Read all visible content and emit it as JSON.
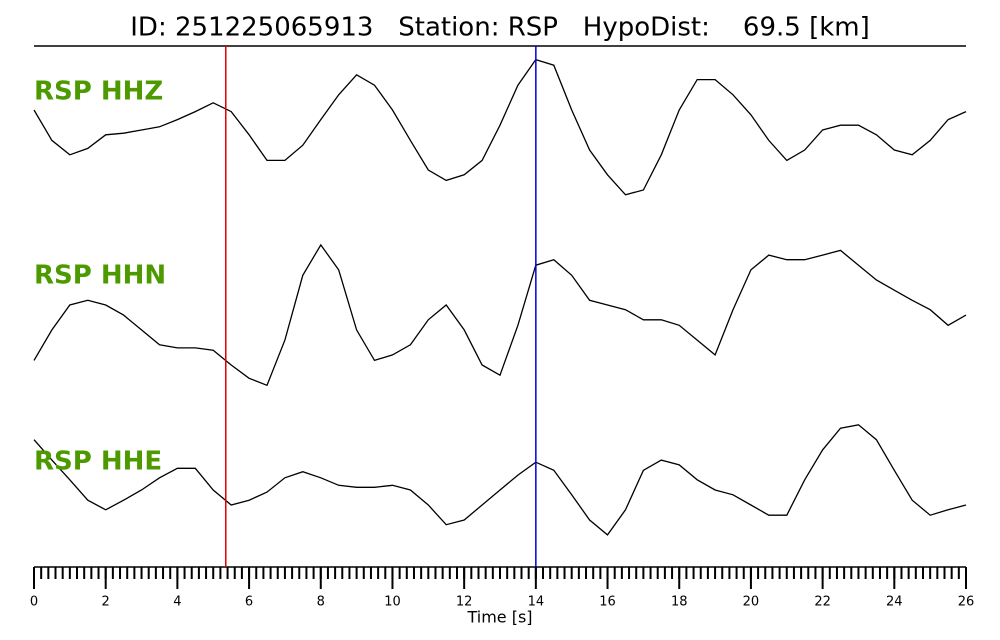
{
  "chart_data": {
    "type": "line",
    "title": "ID: 251225065913   Station: RSP   HypoDist:    69.5 [km]",
    "xlabel": "Time [s]",
    "xlim": [
      0,
      26
    ],
    "xticks": [
      0,
      2,
      4,
      6,
      8,
      10,
      12,
      14,
      16,
      18,
      20,
      22,
      24,
      26
    ],
    "minor_tick_interval": 0.2,
    "ylim": [
      -1,
      1
    ],
    "label_color": "#4c9a00",
    "markers": [
      {
        "x": 5.35,
        "color": "#e00000"
      },
      {
        "x": 14,
        "color": "#0000e0"
      }
    ],
    "x": [
      0,
      0.5,
      1,
      1.5,
      2,
      2.5,
      3,
      3.5,
      4,
      4.5,
      5,
      5.5,
      6,
      6.5,
      7,
      7.5,
      8,
      8.5,
      9,
      9.5,
      10,
      10.5,
      11,
      11.5,
      12,
      12.5,
      13,
      13.5,
      14,
      14.5,
      15,
      15.5,
      16,
      16.5,
      17,
      17.5,
      18,
      18.5,
      19,
      19.5,
      20,
      20.5,
      21,
      21.5,
      22,
      22.5,
      23,
      23.5,
      24,
      24.5,
      25,
      25.5,
      26
    ],
    "series": [
      {
        "name": "RSP HHZ",
        "color": "#000000",
        "values": [
          0.25,
          -0.13,
          -0.31,
          -0.23,
          -0.06,
          -0.04,
          0,
          0.04,
          0.13,
          0.23,
          0.34,
          0.23,
          -0.06,
          -0.38,
          -0.38,
          -0.19,
          0.13,
          0.44,
          0.69,
          0.56,
          0.25,
          -0.13,
          -0.5,
          -0.63,
          -0.56,
          -0.38,
          0.06,
          0.56,
          0.88,
          0.81,
          0.25,
          -0.25,
          -0.56,
          -0.81,
          -0.75,
          -0.31,
          0.25,
          0.63,
          0.63,
          0.44,
          0.19,
          -0.13,
          -0.38,
          -0.25,
          0,
          0.06,
          0.06,
          -0.06,
          -0.25,
          -0.31,
          -0.13,
          0.13,
          0.23
        ]
      },
      {
        "name": "RSP HHN",
        "color": "#000000",
        "values": [
          -0.62,
          -0.23,
          0.09,
          0.15,
          0.09,
          -0.04,
          -0.23,
          -0.42,
          -0.46,
          -0.46,
          -0.49,
          -0.68,
          -0.85,
          -0.94,
          -0.36,
          0.47,
          0.86,
          0.54,
          -0.23,
          -0.62,
          -0.55,
          -0.42,
          -0.1,
          0.09,
          -0.23,
          -0.68,
          -0.81,
          -0.17,
          0.6,
          0.67,
          0.47,
          0.15,
          0.09,
          0.03,
          -0.1,
          -0.1,
          -0.17,
          -0.36,
          -0.55,
          0.03,
          0.54,
          0.73,
          0.67,
          0.67,
          0.73,
          0.79,
          0.6,
          0.41,
          0.28,
          0.15,
          0.03,
          -0.17,
          -0.04
        ]
      },
      {
        "name": "RSP HHE",
        "color": "#000000",
        "values": [
          0.71,
          0.41,
          0.12,
          -0.18,
          -0.32,
          -0.18,
          -0.03,
          0.15,
          0.29,
          0.29,
          -0.03,
          -0.25,
          -0.18,
          -0.06,
          0.15,
          0.24,
          0.15,
          0.04,
          0.01,
          0.01,
          0.04,
          -0.03,
          -0.25,
          -0.54,
          -0.47,
          -0.25,
          -0.03,
          0.19,
          0.38,
          0.26,
          -0.1,
          -0.47,
          -0.69,
          -0.32,
          0.26,
          0.41,
          0.34,
          0.12,
          -0.03,
          -0.1,
          -0.25,
          -0.4,
          -0.4,
          0.12,
          0.56,
          0.88,
          0.93,
          0.71,
          0.26,
          -0.18,
          -0.4,
          -0.32,
          -0.25
        ]
      }
    ]
  }
}
